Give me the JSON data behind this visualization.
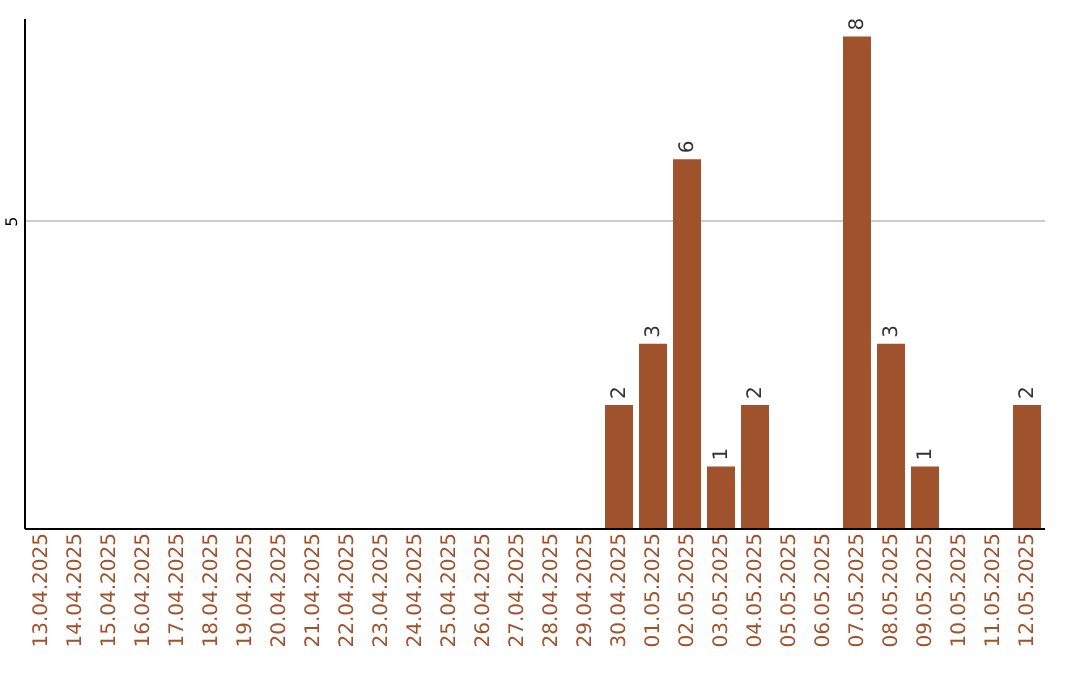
{
  "chart_data": {
    "type": "bar",
    "categories": [
      "13.04.2025",
      "14.04.2025",
      "15.04.2025",
      "16.04.2025",
      "17.04.2025",
      "18.04.2025",
      "19.04.2025",
      "20.04.2025",
      "21.04.2025",
      "22.04.2025",
      "23.04.2025",
      "24.04.2025",
      "25.04.2025",
      "26.04.2025",
      "27.04.2025",
      "28.04.2025",
      "29.04.2025",
      "30.04.2025",
      "01.05.2025",
      "02.05.2025",
      "03.05.2025",
      "04.05.2025",
      "05.05.2025",
      "06.05.2025",
      "07.05.2025",
      "08.05.2025",
      "09.05.2025",
      "10.05.2025",
      "11.05.2025",
      "12.05.2025"
    ],
    "values": [
      null,
      null,
      null,
      null,
      null,
      null,
      null,
      null,
      null,
      null,
      null,
      null,
      null,
      null,
      null,
      null,
      null,
      2,
      3,
      6,
      1,
      2,
      null,
      null,
      8,
      3,
      1,
      null,
      null,
      2
    ],
    "data_labels": true,
    "color": "#a0522d",
    "ylim": [
      0,
      8.3
    ],
    "yticks": [
      5
    ],
    "grid": "y"
  }
}
